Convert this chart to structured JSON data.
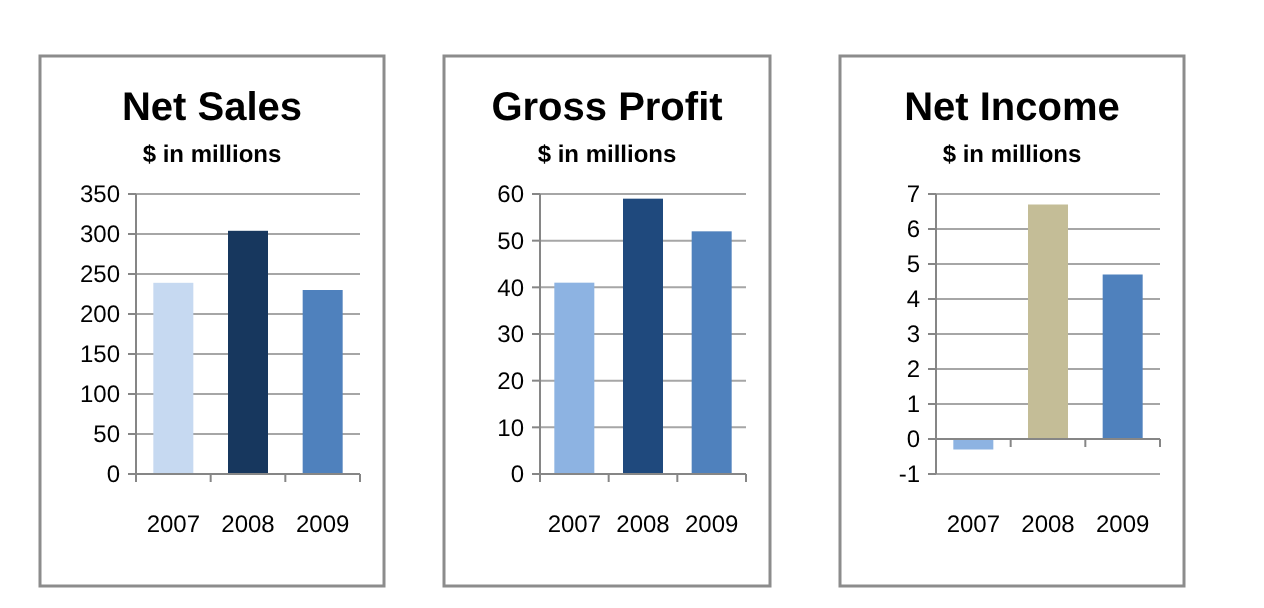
{
  "chart_data": [
    {
      "type": "bar",
      "title": "Net Sales",
      "subtitle": "$ in millions",
      "categories": [
        "2007",
        "2008",
        "2009"
      ],
      "values": [
        239,
        304,
        230
      ],
      "colors": [
        "#c6d9f1",
        "#17375e",
        "#4f81bd"
      ],
      "ylim": [
        0,
        350
      ],
      "yticks": [
        0,
        50,
        100,
        150,
        200,
        250,
        300,
        350
      ],
      "grid": "y"
    },
    {
      "type": "bar",
      "title": "Gross Profit",
      "subtitle": "$ in millions",
      "categories": [
        "2007",
        "2008",
        "2009"
      ],
      "values": [
        41,
        59,
        52
      ],
      "colors": [
        "#8db3e2",
        "#1f497d",
        "#4f81bd"
      ],
      "ylim": [
        0,
        60
      ],
      "yticks": [
        0,
        10,
        20,
        30,
        40,
        50,
        60
      ],
      "grid": "y"
    },
    {
      "type": "bar",
      "title": "Net Income",
      "subtitle": "$ in millions",
      "categories": [
        "2007",
        "2008",
        "2009"
      ],
      "values": [
        -0.3,
        6.7,
        4.7
      ],
      "colors": [
        "#8db3e2",
        "#c4bd97",
        "#4f81bd"
      ],
      "ylim": [
        -1,
        7
      ],
      "yticks": [
        -1,
        0,
        1,
        2,
        3,
        4,
        5,
        6,
        7
      ],
      "grid": "y"
    }
  ]
}
